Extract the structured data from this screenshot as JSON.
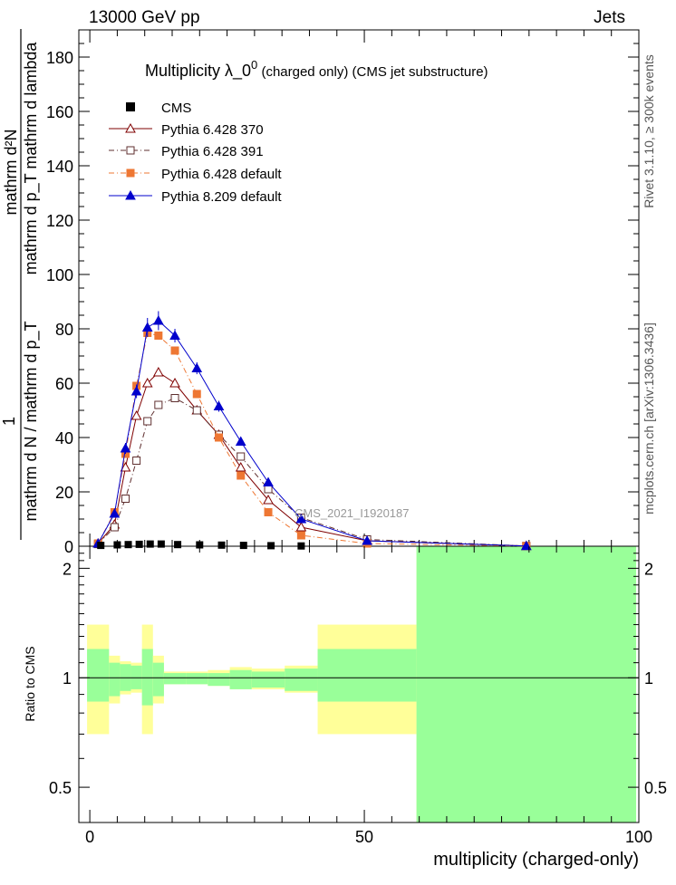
{
  "header": {
    "left": "13000 GeV pp",
    "right": "Jets"
  },
  "side_labels": {
    "rivet": "Rivet 3.1.10, ≥ 300k events",
    "mcplots": "mcplots.cern.ch [arXiv:1306.3436]"
  },
  "chart_data": {
    "type": "line",
    "title_parts": {
      "main": "Multiplicity  λ_0",
      "sup": "0",
      "rest": " (charged only) (CMS jet substructure)"
    },
    "analysis_label": "CMS_2021_I1920187",
    "ylabel_upper": {
      "numerator": "mathrm d²N",
      "denominator": "mathrm d p_T mathrm d lambda"
    },
    "ylabel_prefix": "1",
    "ylabel_lower": "mathrm d N / mathrm d p_T",
    "ratio_ylabel": "Ratio to CMS",
    "xlabel": "multiplicity (charged-only)",
    "xlim": [
      -2,
      100
    ],
    "ylim": [
      0,
      190
    ],
    "ratio_ylim": [
      0.4,
      2.3
    ],
    "y_ticks": [
      0,
      20,
      40,
      60,
      80,
      100,
      120,
      140,
      160,
      180
    ],
    "x_ticks": [
      0,
      50,
      100
    ],
    "ratio_ticks": [
      0.5,
      1,
      2
    ],
    "ratio_tick_labels": [
      "0.5",
      "1",
      "2"
    ],
    "cms": {
      "name": "CMS",
      "x": [
        2,
        5,
        7,
        9,
        11,
        13,
        16,
        20,
        24,
        28,
        33,
        38.5
      ],
      "y": [
        0.3,
        0.5,
        0.6,
        0.7,
        0.8,
        0.8,
        0.6,
        0.5,
        0.4,
        0.3,
        0.2,
        0.1
      ],
      "color": "#000000"
    },
    "series": [
      {
        "name": "Pythia 6.428 370",
        "color": "#7f0000",
        "marker": "triangle-open",
        "dash": "",
        "x": [
          1.5,
          4.5,
          6.5,
          8.5,
          10.5,
          12.5,
          15.5,
          19.5,
          23.5,
          27.5,
          32.5,
          38.5,
          50.5,
          79.5
        ],
        "y": [
          1.0,
          8.0,
          29.0,
          48.0,
          60.0,
          64.0,
          60.0,
          50.0,
          41.0,
          29.0,
          17.0,
          7.0,
          2.0,
          0.1
        ],
        "err": [
          0,
          0,
          0,
          0,
          0,
          0,
          0,
          0,
          0,
          0,
          0,
          0,
          0,
          0
        ]
      },
      {
        "name": "Pythia 6.428 391",
        "color": "#5f2f2f",
        "marker": "square-open",
        "dash": "6,3,1,3",
        "x": [
          1.5,
          4.5,
          6.5,
          8.5,
          10.5,
          12.5,
          15.5,
          19.5,
          23.5,
          27.5,
          32.5,
          38.5,
          50.5,
          79.5
        ],
        "y": [
          0.8,
          7.0,
          17.5,
          31.5,
          46.0,
          52.0,
          54.5,
          50.0,
          41.0,
          33.0,
          21.0,
          10.5,
          2.5,
          0.1
        ],
        "err": [
          0,
          0,
          0,
          0,
          0,
          0,
          0,
          0,
          0,
          0,
          0,
          0,
          0,
          0
        ]
      },
      {
        "name": "Pythia 6.428 default",
        "color": "#ee7733",
        "marker": "square-filled",
        "dash": "6,3,1,3",
        "x": [
          1.5,
          4.5,
          6.5,
          8.5,
          10.5,
          12.5,
          15.5,
          19.5,
          23.5,
          27.5,
          32.5,
          38.5,
          50.5,
          79.5
        ],
        "y": [
          1.0,
          12.5,
          34.0,
          59.0,
          78.5,
          77.5,
          72.0,
          56.0,
          40.0,
          26.0,
          12.5,
          4.0,
          1.0,
          0.05
        ],
        "err": [
          0,
          0,
          0,
          0,
          0,
          0,
          0,
          0,
          0,
          0,
          0,
          0,
          0,
          0
        ]
      },
      {
        "name": "Pythia 8.209 default",
        "color": "#0000cc",
        "marker": "triangle-filled",
        "dash": "",
        "x": [
          1.5,
          4.5,
          6.5,
          8.5,
          10.5,
          12.5,
          15.5,
          19.5,
          23.5,
          27.5,
          32.5,
          38.5,
          50.5,
          79.5
        ],
        "y": [
          1.0,
          12.0,
          36.0,
          57.0,
          80.5,
          83.0,
          77.5,
          65.5,
          51.5,
          38.5,
          23.5,
          10.0,
          2.0,
          0.1
        ],
        "err": [
          0.3,
          1.2,
          2.0,
          2.5,
          3.5,
          3.5,
          2.5,
          2.2,
          2.0,
          1.5,
          1.0,
          0.8,
          0.3,
          0.1
        ]
      }
    ],
    "ratio_bands": {
      "bins": [
        [
          -0.5,
          3.5
        ],
        [
          3.5,
          5.5
        ],
        [
          5.5,
          7.5
        ],
        [
          7.5,
          9.5
        ],
        [
          9.5,
          11.5
        ],
        [
          11.5,
          13.5
        ],
        [
          13.5,
          17.5
        ],
        [
          17.5,
          21.5
        ],
        [
          21.5,
          25.5
        ],
        [
          25.5,
          29.5
        ],
        [
          29.5,
          35.5
        ],
        [
          35.5,
          41.5
        ],
        [
          41.5,
          59.5
        ],
        [
          59.5,
          99.5
        ]
      ],
      "stat": [
        [
          0.86,
          1.2
        ],
        [
          0.89,
          1.1
        ],
        [
          0.92,
          1.09
        ],
        [
          0.93,
          1.08
        ],
        [
          0.84,
          1.2
        ],
        [
          0.89,
          1.1
        ],
        [
          0.96,
          1.03
        ],
        [
          0.96,
          1.03
        ],
        [
          0.95,
          1.03
        ],
        [
          0.93,
          1.05
        ],
        [
          0.94,
          1.04
        ],
        [
          0.92,
          1.06
        ],
        [
          0.86,
          1.2
        ],
        [
          0.4,
          2.3
        ]
      ],
      "total": [
        [
          0.7,
          1.4
        ],
        [
          0.85,
          1.15
        ],
        [
          0.9,
          1.11
        ],
        [
          0.91,
          1.1
        ],
        [
          0.7,
          1.4
        ],
        [
          0.85,
          1.15
        ],
        [
          0.96,
          1.04
        ],
        [
          0.96,
          1.04
        ],
        [
          0.95,
          1.05
        ],
        [
          0.93,
          1.07
        ],
        [
          0.93,
          1.06
        ],
        [
          0.91,
          1.08
        ],
        [
          0.7,
          1.4
        ],
        [
          0.4,
          2.3
        ]
      ],
      "stat_color": "#99ff99",
      "total_color": "#ffff99"
    }
  }
}
